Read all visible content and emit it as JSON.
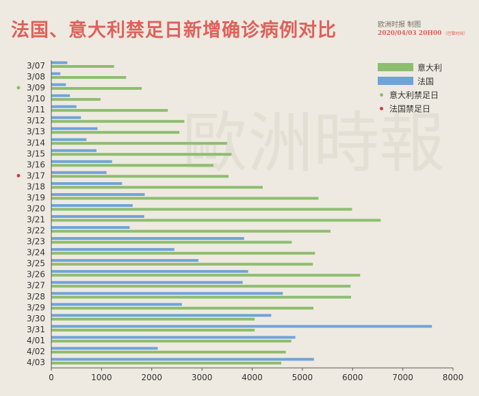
{
  "header": {
    "title": "法国、意大利禁足日新增确诊病例对比",
    "credit": "欧洲时报 制图",
    "datetime": "2020/04/03 20H00",
    "timezone_note": "（巴黎时间）"
  },
  "watermark": "歐洲時報",
  "colors": {
    "italy": "#8dbd6e",
    "france": "#6fa3d8",
    "italy_lockdown_dot": "#8dbd6e",
    "france_lockdown_dot": "#d23a3a",
    "title": "#e0605a"
  },
  "legend": {
    "italy": "意大利",
    "france": "法国",
    "italy_lockdown": "意大利禁足日",
    "france_lockdown": "法国禁足日"
  },
  "chart_data": {
    "type": "bar",
    "orientation": "horizontal",
    "title": "法国、意大利禁足日新增确诊病例对比",
    "categories": [
      "3/07",
      "3/08",
      "3/09",
      "3/10",
      "3/11",
      "3/12",
      "3/13",
      "3/14",
      "3/15",
      "3/16",
      "3/17",
      "3/18",
      "3/19",
      "3/20",
      "3/21",
      "3/22",
      "3/23",
      "3/24",
      "3/25",
      "3/26",
      "3/27",
      "3/28",
      "3/29",
      "3/30",
      "3/31",
      "4/01",
      "4/02",
      "4/03"
    ],
    "series": [
      {
        "name": "法国",
        "values": [
          320,
          180,
          290,
          370,
          500,
          590,
          920,
          700,
          900,
          1210,
          1100,
          1410,
          1860,
          1620,
          1850,
          1560,
          3840,
          2450,
          2930,
          3920,
          3810,
          4610,
          2600,
          4380,
          7580,
          4860,
          2120,
          5230
        ]
      },
      {
        "name": "意大利",
        "values": [
          1250,
          1490,
          1800,
          980,
          2320,
          2650,
          2550,
          3500,
          3590,
          3230,
          3530,
          4210,
          5320,
          5990,
          6560,
          5560,
          4790,
          5250,
          5210,
          6150,
          5960,
          5970,
          5220,
          4050,
          4050,
          4780,
          4670,
          4580
        ]
      }
    ],
    "markers": {
      "italy_lockdown": "3/09",
      "france_lockdown": "3/17"
    },
    "x_ticks": [
      0,
      1000,
      2000,
      3000,
      4000,
      5000,
      6000,
      7000,
      8000
    ],
    "xlim": [
      0,
      8000
    ],
    "xlabel": "",
    "ylabel": "",
    "grid": false
  }
}
